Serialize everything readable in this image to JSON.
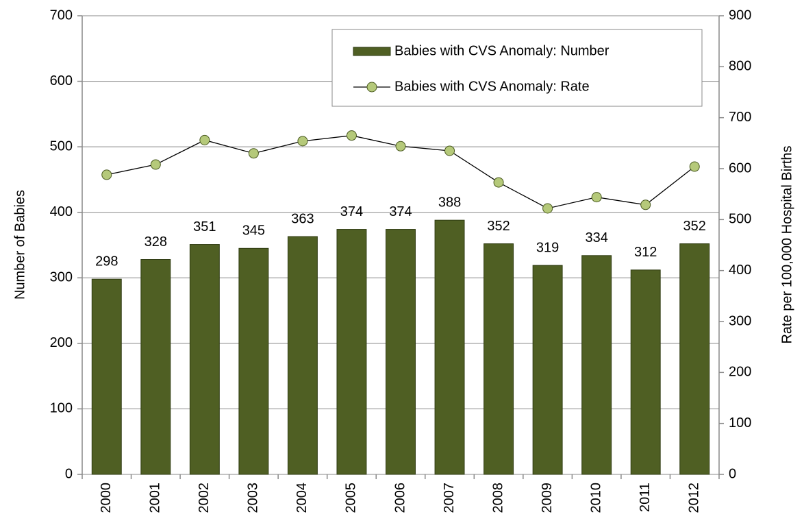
{
  "chart_data": {
    "type": "bar_line",
    "categories": [
      "2000",
      "2001",
      "2002",
      "2003",
      "2004",
      "2005",
      "2006",
      "2007",
      "2008",
      "2009",
      "2010",
      "2011",
      "2012"
    ],
    "series": [
      {
        "name": "Babies with CVS Anomaly: Number",
        "type": "bar",
        "color": "#4f5f23",
        "values": [
          298,
          328,
          351,
          345,
          363,
          374,
          374,
          388,
          352,
          319,
          334,
          312,
          352
        ]
      },
      {
        "name": "Babies with CVS Anomaly: Rate",
        "type": "line",
        "axis": "y2",
        "color": "#b5c97a",
        "values": [
          588,
          608,
          656,
          630,
          654,
          665,
          644,
          635,
          573,
          522,
          544,
          529,
          604
        ]
      }
    ],
    "ylabel": "Number of Babies",
    "y2label": "Rate per 100,000 Hospital Births",
    "ylim": [
      0,
      700
    ],
    "yticks": [
      0,
      100,
      200,
      300,
      400,
      500,
      600,
      700
    ],
    "y2lim": [
      0,
      900
    ],
    "y2ticks": [
      0,
      100,
      200,
      300,
      400,
      500,
      600,
      700,
      800,
      900
    ],
    "grid": true,
    "legend": "top-right"
  }
}
